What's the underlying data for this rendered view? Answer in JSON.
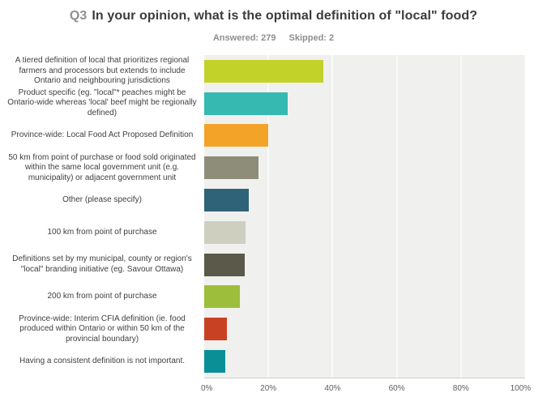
{
  "header": {
    "q_label": "Q3",
    "title_text": "In your opinion, what is the optimal definition of \"local\" food?",
    "answered_label": "Answered: 279",
    "skipped_label": "Skipped: 2"
  },
  "colors": {
    "title_prefix": "#919191",
    "title_text": "#3b3b3b",
    "subtitle_text": "#8e8e8e",
    "category_label_text": "#404040",
    "tick_label_text": "#5e5e5e",
    "plot_background": "#f0f0ee",
    "gridline": "#fafaf8",
    "axis_line": "#cfcfcd"
  },
  "chart_data": {
    "type": "bar",
    "orientation": "horizontal",
    "title": "Q3 In your opinion, what is the optimal definition of \"local\" food?",
    "subtitle": "Answered: 279  Skipped: 2",
    "categories": [
      "A tiered definition of local that prioritizes regional farmers and processors but extends to include Ontario and neighbouring jurisdictions",
      "Product specific (eg. \"local\"* peaches might be Ontario-wide whereas 'local' beef might be regionally defined)",
      "Province-wide: Local Food Act Proposed Definition",
      "50 km from point of purchase or food sold originated within the same local government unit (e.g. municipality) or adjacent government unit",
      "Other (please specify)",
      "100 km from point of purchase",
      "Definitions set by my municipal, county or region's \"local\" branding initiative (eg. Savour Ottawa)",
      "200 km from point of purchase",
      "Province-wide: Interim CFIA definition (ie. food produced within Ontario or within 50 km of the provincial boundary)",
      "Having a consistent definition is not important."
    ],
    "values": [
      37,
      26,
      20,
      17,
      14,
      13,
      12.5,
      11,
      7,
      6.5
    ],
    "value_unit": "%",
    "bar_colors": [
      "#c3d229",
      "#35b9b0",
      "#f3a328",
      "#8e8d79",
      "#2f6377",
      "#cfcfc0",
      "#5a594a",
      "#9cbe3a",
      "#c94123",
      "#0a8f96"
    ],
    "xlabel": "",
    "ylabel": "",
    "xlim": [
      0,
      100
    ],
    "x_ticks": [
      "0%",
      "20%",
      "40%",
      "60%",
      "80%",
      "100%"
    ],
    "grid": "vertical",
    "legend": false
  }
}
